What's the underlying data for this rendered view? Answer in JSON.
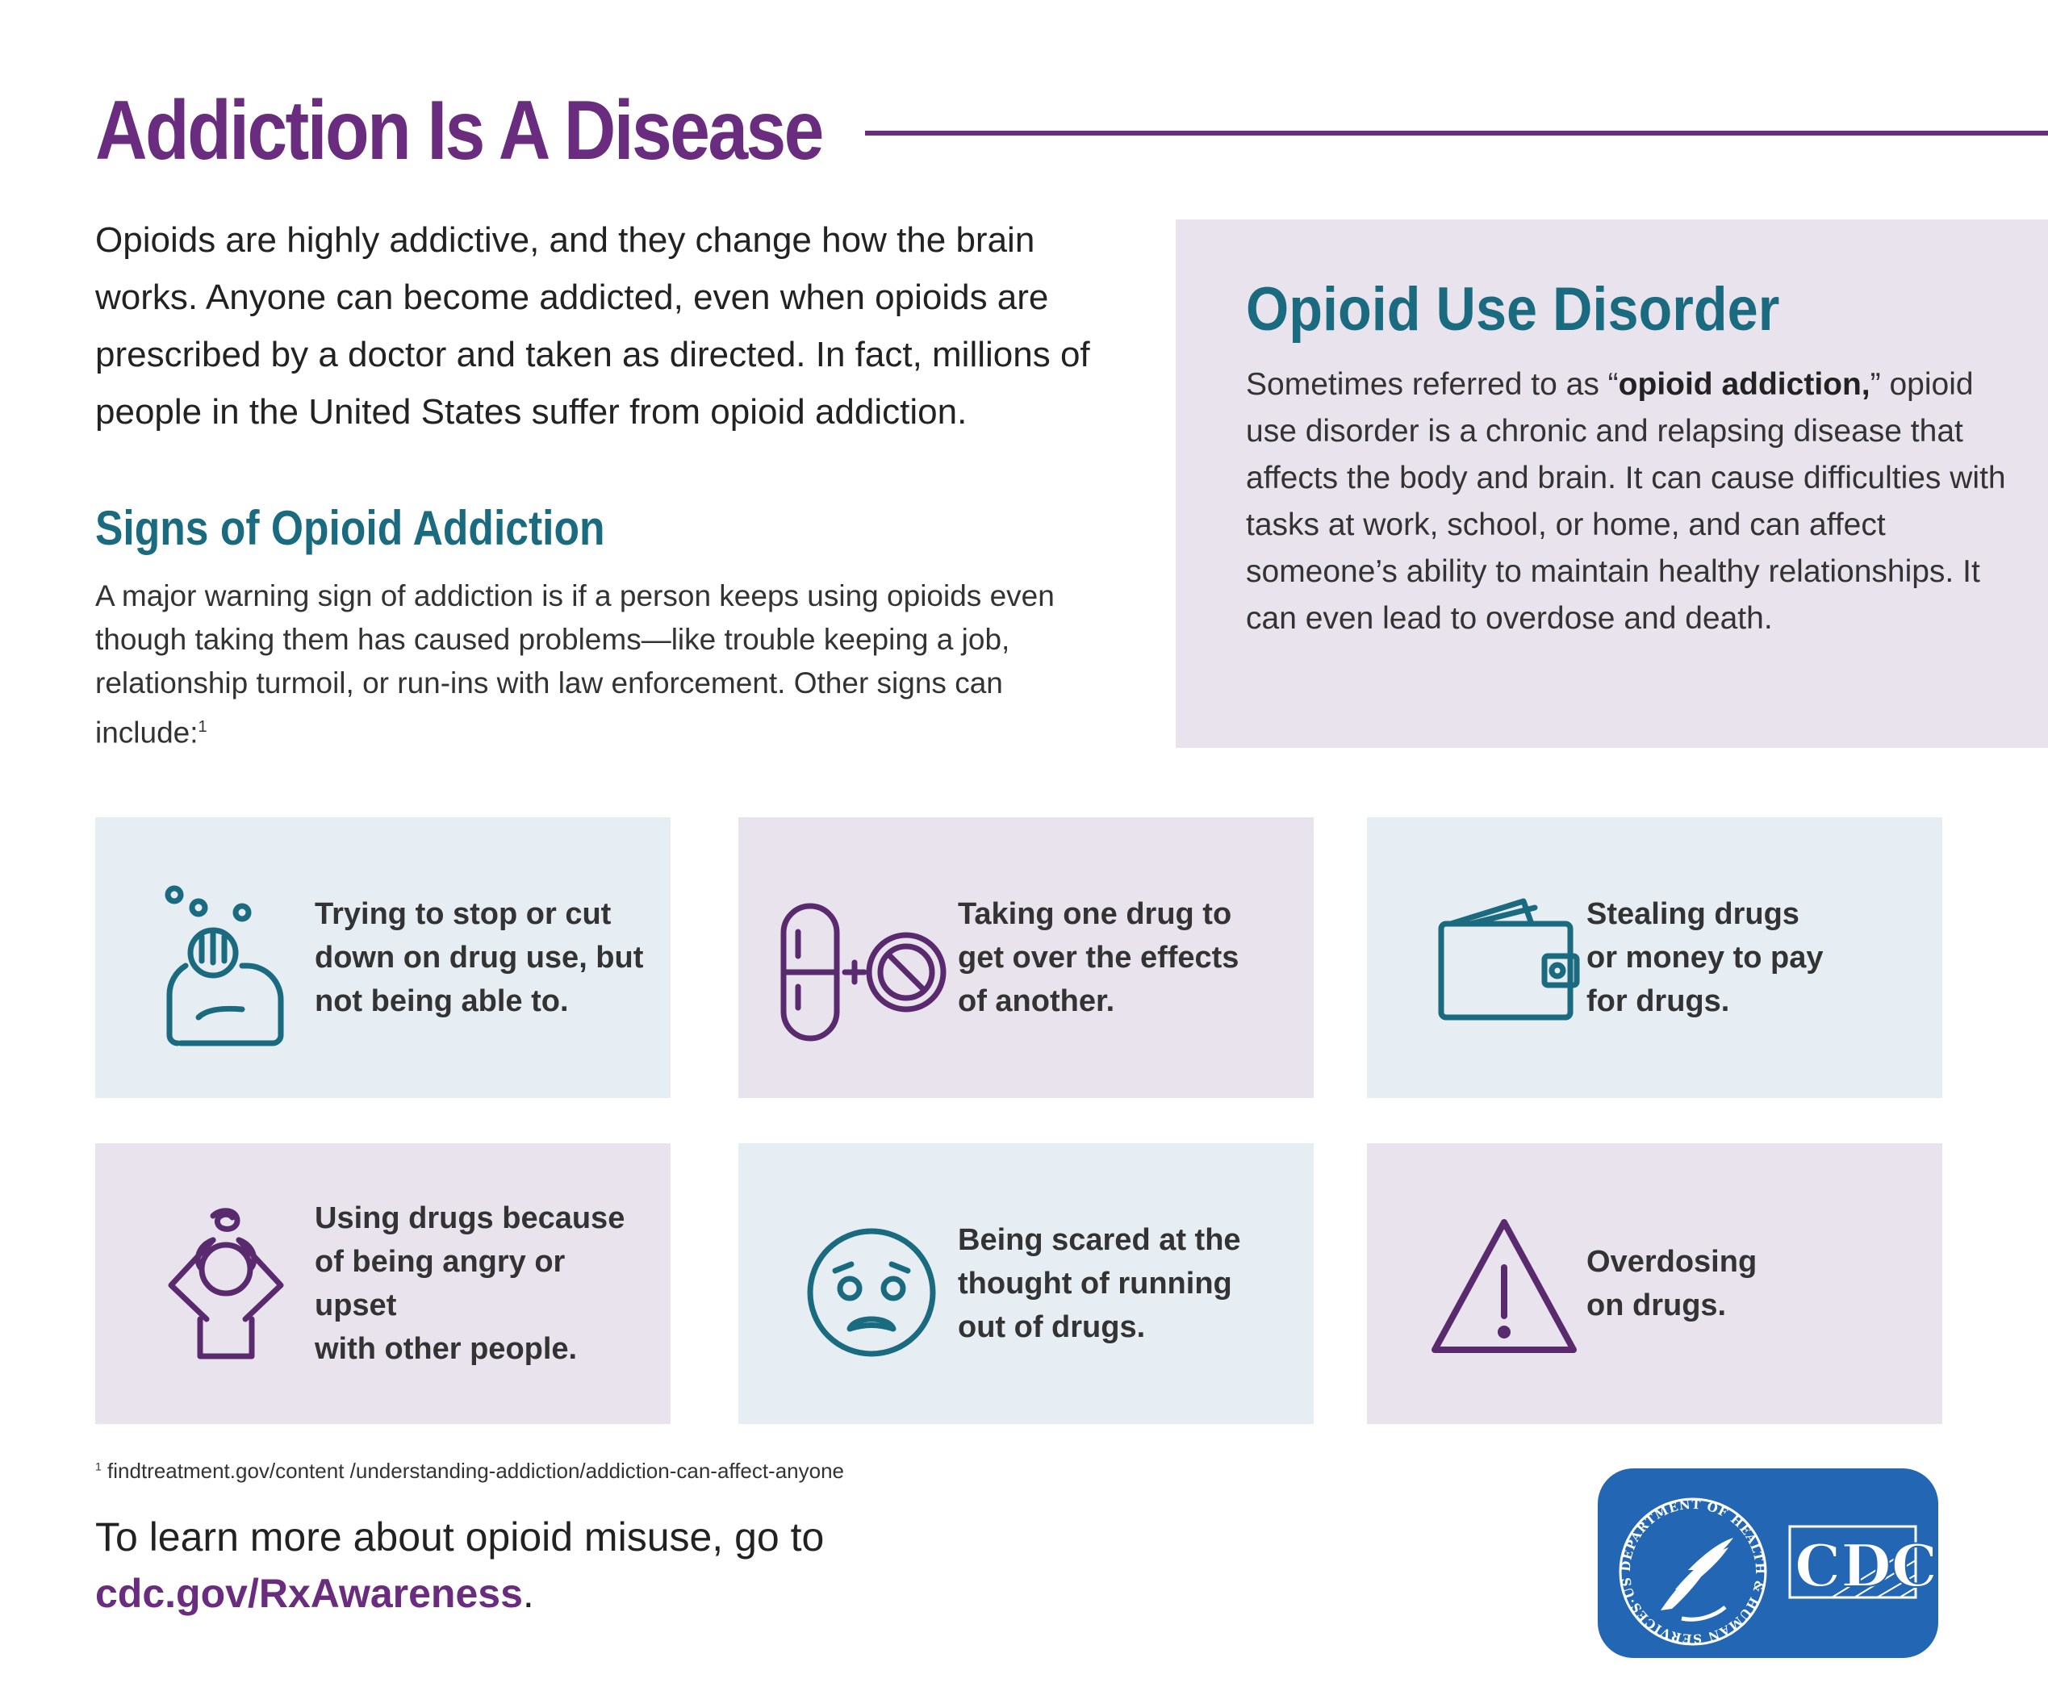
{
  "title": "Addiction Is A Disease",
  "intro": "Opioids are highly addictive, and they change how the brain works. Anyone can become addicted, even when opioids are prescribed by a doctor and taken as directed. In fact, millions of people in the United States suffer from opioid addiction.",
  "signs": {
    "heading": "Signs of Opioid Addiction",
    "text": "A major warning sign of addiction is if a person keeps using opioids even though taking them has caused problems—like trouble keeping a job, relationship turmoil, or run-ins with law enforcement. Other signs can include:",
    "footnote_marker": "1"
  },
  "oud": {
    "heading": "Opioid Use Disorder",
    "text_before": "Sometimes referred to as “",
    "text_bold": "opioid addiction,",
    "text_after": "” opioid use disorder is a chronic and relapsing disease that affects the body and brain. It can cause difficulties with tasks at work, school, or home, and can affect someone’s ability to maintain healthy relationships. It can even lead to overdose and death."
  },
  "cards": [
    {
      "icon": "frustrated-person-icon",
      "label": "Trying to stop or cut\ndown on drug use, but\nnot being able to."
    },
    {
      "icon": "pill-plus-pill-icon",
      "label": "Taking one drug to\nget over the effects\nof another."
    },
    {
      "icon": "wallet-icon",
      "label": "Stealing drugs\nor money to pay\nfor drugs."
    },
    {
      "icon": "upset-person-icon",
      "label": "Using drugs because\nof being angry or upset\nwith other people."
    },
    {
      "icon": "scared-face-icon",
      "label": "Being scared at the\nthought of running\nout of drugs."
    },
    {
      "icon": "warning-triangle-icon",
      "label": "Overdosing\non drugs."
    }
  ],
  "footnote": {
    "marker": "1",
    "text": " findtreatment.gov/content /understanding-addiction/addiction-can-affect-anyone"
  },
  "learn_more": {
    "text": "To learn more about opioid misuse, go to",
    "link": "cdc.gov/RxAwareness",
    "suffix": "."
  },
  "logo": {
    "seal_text": "DEPARTMENT OF HEALTH & HUMAN SERVICES·USA",
    "agency": "CDC"
  },
  "colors": {
    "purple": "#6a2c7f",
    "teal": "#1b6b80",
    "card_blue": "#e6edf3",
    "card_lilac": "#e8e3ec",
    "logo_blue": "#2366b3"
  }
}
